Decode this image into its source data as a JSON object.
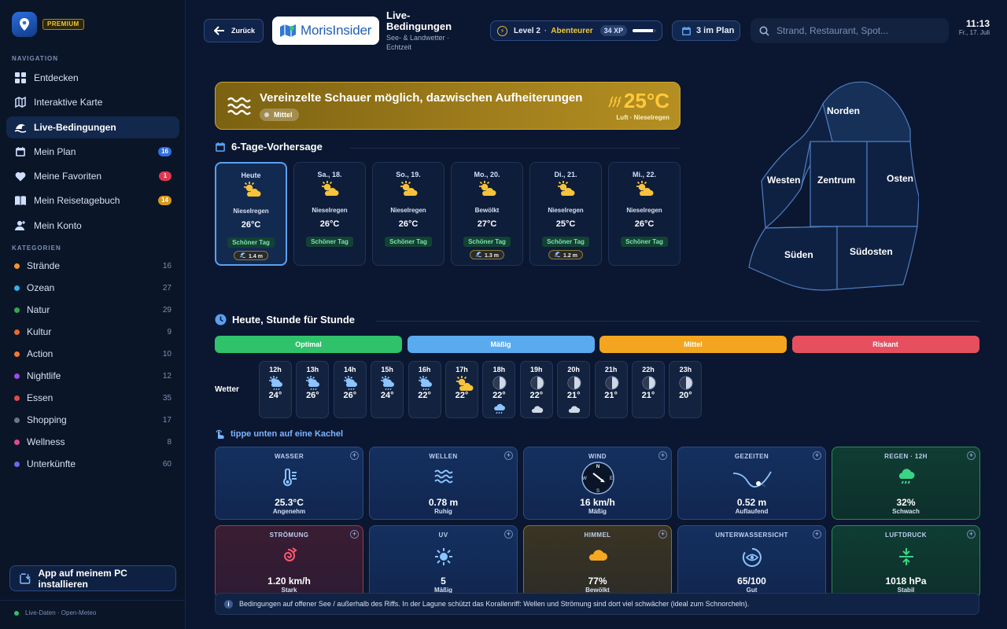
{
  "app": {
    "badge": "PREMIUM"
  },
  "sidebar": {
    "nav_title": "NAVIGATION",
    "nav": [
      {
        "label": "Entdecken",
        "icon": "grid-icon"
      },
      {
        "label": "Interaktive Karte",
        "icon": "map-icon"
      },
      {
        "label": "Live-Bedingungen",
        "icon": "wave-icon",
        "active": true
      },
      {
        "label": "Mein Plan",
        "icon": "calendar-icon",
        "badge": "16",
        "badge_color": "#2f6fe0"
      },
      {
        "label": "Meine Favoriten",
        "icon": "heart-icon",
        "badge": "1",
        "badge_color": "#e0384f"
      },
      {
        "label": "Mein Reisetagebuch",
        "icon": "book-icon",
        "badge": "14",
        "badge_color": "#d79a18"
      },
      {
        "label": "Mein Konto",
        "icon": "user-icon"
      }
    ],
    "cat_title": "KATEGORIEN",
    "categories": [
      {
        "label": "Strände",
        "count": "16",
        "color": "#f0962e"
      },
      {
        "label": "Ozean",
        "count": "27",
        "color": "#2fb3e6"
      },
      {
        "label": "Natur",
        "count": "29",
        "color": "#2fa84f"
      },
      {
        "label": "Kultur",
        "count": "9",
        "color": "#e86a2a"
      },
      {
        "label": "Action",
        "count": "10",
        "color": "#f07a2a"
      },
      {
        "label": "Nightlife",
        "count": "12",
        "color": "#9a4be6"
      },
      {
        "label": "Essen",
        "count": "35",
        "color": "#e24a4a"
      },
      {
        "label": "Shopping",
        "count": "17",
        "color": "#6b7688"
      },
      {
        "label": "Wellness",
        "count": "8",
        "color": "#e04a8a"
      },
      {
        "label": "Unterkünfte",
        "count": "60",
        "color": "#6a6ae6"
      }
    ],
    "install_label": "App auf meinem PC installieren",
    "footer": "Live-Daten · Open-Meteo"
  },
  "header": {
    "back_label": "Zurück",
    "brand": "MorisInsider",
    "title": "Live-Bedingungen",
    "subtitle": "See- & Landwetter · Echtzeit",
    "level": "Level 2",
    "level_name": "Abenteurer",
    "xp": "34 XP",
    "xp_progress": 0.85,
    "plan_label": "3 im Plan",
    "search_placeholder": "Strand, Restaurant, Spot...",
    "time": "11:13",
    "date": "Fr., 17. Juli"
  },
  "banner": {
    "title": "Vereinzelte Schauer möglich, dazwischen Aufheiterungen",
    "chip": "Mittel",
    "temp": "25°C",
    "temp_sub": "Luft · Nieselregen"
  },
  "forecast": {
    "title": "6-Tage-Vorhersage",
    "days": [
      {
        "day": "Heute",
        "cond": "Nieselregen",
        "temp": "26°C",
        "tag": "Schöner Tag",
        "wave": "1.4 m",
        "active": true
      },
      {
        "day": "Sa., 18.",
        "cond": "Nieselregen",
        "temp": "26°C",
        "tag": "Schöner Tag",
        "wave": ""
      },
      {
        "day": "So., 19.",
        "cond": "Nieselregen",
        "temp": "26°C",
        "tag": "Schöner Tag",
        "wave": ""
      },
      {
        "day": "Mo., 20.",
        "cond": "Bewölkt",
        "temp": "27°C",
        "tag": "Schöner Tag",
        "wave": "1.3 m"
      },
      {
        "day": "Di., 21.",
        "cond": "Nieselregen",
        "temp": "25°C",
        "tag": "Schöner Tag",
        "wave": "1.2 m"
      },
      {
        "day": "Mi., 22.",
        "cond": "Nieselregen",
        "temp": "26°C",
        "tag": "Schöner Tag",
        "wave": ""
      }
    ]
  },
  "map": {
    "regions": [
      "Norden",
      "Westen",
      "Zentrum",
      "Osten",
      "Süden",
      "Südosten"
    ]
  },
  "hourly": {
    "title": "Heute, Stunde für Stunde",
    "legend": [
      {
        "label": "Optimal",
        "color": "#2fc26a"
      },
      {
        "label": "Mäßig",
        "color": "#5aaaf0"
      },
      {
        "label": "Mittel",
        "color": "#f3a51f"
      },
      {
        "label": "Riskant",
        "color": "#e6505e"
      }
    ],
    "row_label": "Wetter",
    "hours": [
      {
        "h": "12h",
        "t": "24°",
        "icon": "sun-drizzle-icon"
      },
      {
        "h": "13h",
        "t": "26°",
        "icon": "sun-drizzle-icon"
      },
      {
        "h": "14h",
        "t": "26°",
        "icon": "sun-drizzle-icon"
      },
      {
        "h": "15h",
        "t": "24°",
        "icon": "sun-drizzle-icon"
      },
      {
        "h": "16h",
        "t": "22°",
        "icon": "sun-drizzle-icon"
      },
      {
        "h": "17h",
        "t": "22°",
        "icon": "sun-cloud-icon"
      },
      {
        "h": "18h",
        "t": "22°",
        "icon": "moon-icon",
        "sub": "rain-cloud-icon"
      },
      {
        "h": "19h",
        "t": "22°",
        "icon": "moon-icon",
        "sub": "cloud-icon"
      },
      {
        "h": "20h",
        "t": "21°",
        "icon": "moon-icon",
        "sub": "cloud-icon"
      },
      {
        "h": "21h",
        "t": "21°",
        "icon": "moon-icon"
      },
      {
        "h": "22h",
        "t": "21°",
        "icon": "moon-icon"
      },
      {
        "h": "23h",
        "t": "20°",
        "icon": "moon-icon"
      }
    ]
  },
  "tiles_hint": "tippe unten auf eine Kachel",
  "tiles": [
    {
      "label": "WASSER",
      "value": "25.3°C",
      "sub": "Angenehm",
      "icon": "thermometer-icon",
      "style": "blue"
    },
    {
      "label": "WELLEN",
      "value": "0.78 m",
      "sub": "Ruhig",
      "icon": "waves-icon",
      "style": "blue"
    },
    {
      "label": "WIND",
      "value": "16 km/h",
      "sub": "Mäßig",
      "icon": "compass-icon",
      "style": "blue"
    },
    {
      "label": "GEZEITEN",
      "value": "0.52 m",
      "sub": "Auflaufend",
      "icon": "tide-curve-icon",
      "style": "blue"
    },
    {
      "label": "REGEN · 12H",
      "value": "32%",
      "sub": "Schwach",
      "icon": "rain-cloud-icon",
      "style": "green"
    },
    {
      "label": "STRÖMUNG",
      "value": "1.20 km/h",
      "sub": "Stark",
      "icon": "current-spiral-icon",
      "style": "red"
    },
    {
      "label": "UV",
      "value": "5",
      "sub": "Mäßig",
      "icon": "sun-icon",
      "style": "blue"
    },
    {
      "label": "HIMMEL",
      "value": "77%",
      "sub": "Bewölkt",
      "icon": "cloud-icon",
      "style": "amber"
    },
    {
      "label": "UNTERWASSERSICHT",
      "value": "65/100",
      "sub": "Gut",
      "icon": "eye-gauge-icon",
      "style": "blue"
    },
    {
      "label": "LUFTDRUCK",
      "value": "1018 hPa",
      "sub": "Stabil",
      "icon": "pressure-icon",
      "style": "green"
    }
  ],
  "note": "Bedingungen auf offener See / außerhalb des Riffs. In der Lagune schützt das Korallenriff: Wellen und Strömung sind dort viel schwächer (ideal zum Schnorcheln).",
  "compass": {
    "n": "N",
    "s": "S",
    "e": "E",
    "w": "W"
  }
}
